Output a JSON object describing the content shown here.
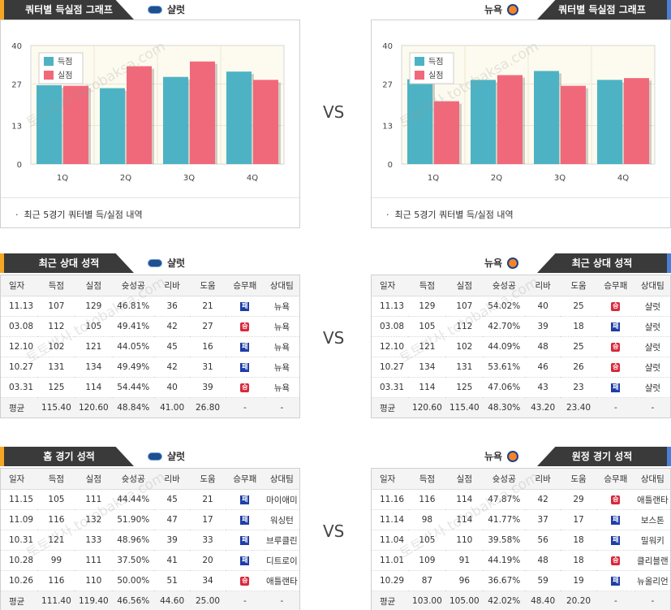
{
  "header": {
    "chart_tab_label": "쿼터별 득실점 그래프",
    "recent_tab_label": "최근 상대 성적",
    "home_tab_label": "홈 경기 성적",
    "away_tab_label": "원정 경기 성적",
    "team_left": "샬럿",
    "team_right": "뉴욕",
    "vs": "VS",
    "watermark": "토토박사 totobaksa.com"
  },
  "colors": {
    "scored": "#4db3c4",
    "conceded": "#f0697a",
    "tab_bg": "#3a3a3a",
    "accent_left": "#f5a623",
    "accent_right": "#4a7fd6"
  },
  "legend": {
    "scored": "득점",
    "conceded": "실점"
  },
  "chart_note": "최근 5경기 쿼터별 득/실점 내역",
  "chart_data": [
    {
      "type": "bar",
      "categories": [
        "1Q",
        "2Q",
        "3Q",
        "4Q"
      ],
      "series": [
        {
          "name": "득점",
          "values": [
            26.6,
            25.6,
            29.4,
            31.2
          ]
        },
        {
          "name": "실점",
          "values": [
            26.4,
            33.0,
            34.6,
            28.4
          ]
        }
      ],
      "yticks": [
        0,
        13,
        27,
        40
      ],
      "ylim": [
        0,
        40
      ]
    },
    {
      "type": "bar",
      "categories": [
        "1Q",
        "2Q",
        "3Q",
        "4Q"
      ],
      "series": [
        {
          "name": "득점",
          "values": [
            28.6,
            28.4,
            31.4,
            28.4
          ]
        },
        {
          "name": "실점",
          "values": [
            21.2,
            30.0,
            26.4,
            29.0
          ]
        }
      ],
      "yticks": [
        0,
        13,
        27,
        40
      ],
      "ylim": [
        0,
        40
      ]
    }
  ],
  "columns": [
    "일자",
    "득점",
    "실점",
    "슛성공",
    "리바",
    "도움",
    "승무패",
    "상대팀"
  ],
  "result_labels": {
    "win": "승",
    "loss": "패"
  },
  "recent_left": {
    "rows": [
      [
        "11.13",
        "107",
        "129",
        "46.81%",
        "36",
        "21",
        "loss",
        "뉴욕"
      ],
      [
        "03.08",
        "112",
        "105",
        "49.41%",
        "42",
        "27",
        "win",
        "뉴욕"
      ],
      [
        "12.10",
        "102",
        "121",
        "44.05%",
        "45",
        "16",
        "loss",
        "뉴욕"
      ],
      [
        "10.27",
        "131",
        "134",
        "49.49%",
        "42",
        "31",
        "loss",
        "뉴욕"
      ],
      [
        "03.31",
        "125",
        "114",
        "54.44%",
        "40",
        "39",
        "win",
        "뉴욕"
      ]
    ],
    "avg": [
      "평균",
      "115.40",
      "120.60",
      "48.84%",
      "41.00",
      "26.80",
      "-",
      "-"
    ]
  },
  "recent_right": {
    "rows": [
      [
        "11.13",
        "129",
        "107",
        "54.02%",
        "40",
        "25",
        "win",
        "샬럿"
      ],
      [
        "03.08",
        "105",
        "112",
        "42.70%",
        "39",
        "18",
        "loss",
        "샬럿"
      ],
      [
        "12.10",
        "121",
        "102",
        "44.09%",
        "48",
        "25",
        "win",
        "샬럿"
      ],
      [
        "10.27",
        "134",
        "131",
        "53.61%",
        "46",
        "26",
        "win",
        "샬럿"
      ],
      [
        "03.31",
        "114",
        "125",
        "47.06%",
        "43",
        "23",
        "loss",
        "샬럿"
      ]
    ],
    "avg": [
      "평균",
      "120.60",
      "115.40",
      "48.30%",
      "43.20",
      "23.40",
      "-",
      "-"
    ]
  },
  "home_left": {
    "rows": [
      [
        "11.15",
        "105",
        "111",
        "44.44%",
        "45",
        "21",
        "loss",
        "마이애미"
      ],
      [
        "11.09",
        "116",
        "132",
        "51.90%",
        "47",
        "17",
        "loss",
        "워싱턴"
      ],
      [
        "10.31",
        "121",
        "133",
        "48.96%",
        "39",
        "33",
        "loss",
        "브루클린"
      ],
      [
        "10.28",
        "99",
        "111",
        "37.50%",
        "41",
        "20",
        "loss",
        "디트로이"
      ],
      [
        "10.26",
        "116",
        "110",
        "50.00%",
        "51",
        "34",
        "win",
        "애틀랜타"
      ]
    ],
    "avg": [
      "평균",
      "111.40",
      "119.40",
      "46.56%",
      "44.60",
      "25.00",
      "-",
      "-"
    ]
  },
  "away_right": {
    "rows": [
      [
        "11.16",
        "116",
        "114",
        "47.87%",
        "42",
        "29",
        "win",
        "애틀랜타"
      ],
      [
        "11.14",
        "98",
        "114",
        "41.77%",
        "37",
        "17",
        "loss",
        "보스톤"
      ],
      [
        "11.04",
        "105",
        "110",
        "39.58%",
        "56",
        "18",
        "loss",
        "밀워키"
      ],
      [
        "11.01",
        "109",
        "91",
        "44.19%",
        "48",
        "18",
        "win",
        "클리블랜"
      ],
      [
        "10.29",
        "87",
        "96",
        "36.67%",
        "59",
        "19",
        "loss",
        "뉴올리언"
      ]
    ],
    "avg": [
      "평균",
      "103.00",
      "105.00",
      "42.02%",
      "48.40",
      "20.20",
      "-",
      "-"
    ]
  }
}
